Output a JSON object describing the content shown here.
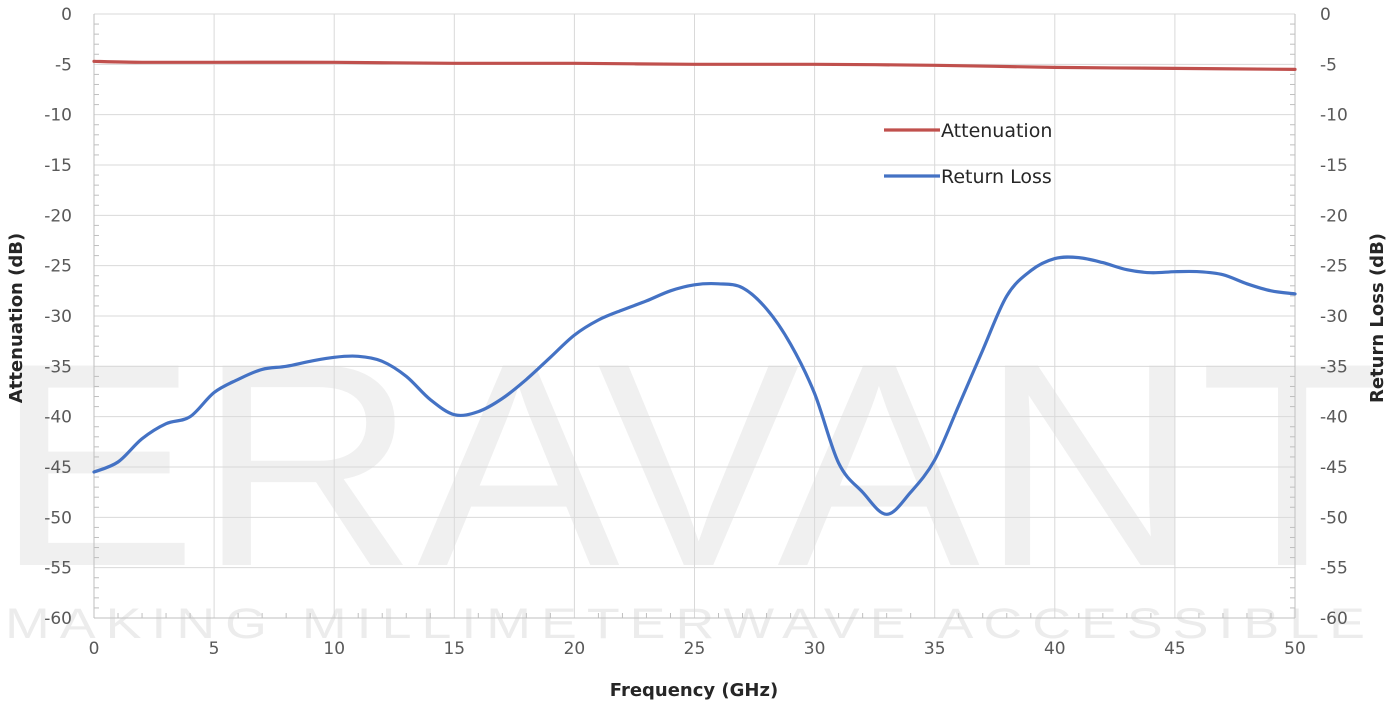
{
  "watermark": {
    "logo_text": "ERAVANT",
    "tagline": "MAKING MILLIMETERWAVE ACCESSIBLE"
  },
  "chart_data": {
    "type": "line",
    "xlabel": "Frequency (GHz)",
    "ylabel_left": "Attenuation (dB)",
    "ylabel_right": "Return Loss (dB)",
    "xlim": [
      0,
      50
    ],
    "ylim": [
      -60,
      0
    ],
    "x_ticks": [
      "0",
      "5",
      "10",
      "15",
      "20",
      "25",
      "30",
      "35",
      "40",
      "45",
      "50"
    ],
    "y_ticks": [
      "0",
      "-5",
      "-10",
      "-15",
      "-20",
      "-25",
      "-30",
      "-35",
      "-40",
      "-45",
      "-50",
      "-55",
      "-60"
    ],
    "grid": "horizontal major + vertical major",
    "legend_position": "upper-right, inside plot",
    "series": [
      {
        "name": "Attenuation",
        "axis": "left",
        "color": "#c0504d",
        "x": [
          0,
          2,
          5,
          10,
          15,
          20,
          25,
          30,
          35,
          40,
          45,
          50
        ],
        "y": [
          -4.7,
          -4.8,
          -4.8,
          -4.8,
          -4.9,
          -4.9,
          -5.0,
          -5.0,
          -5.1,
          -5.3,
          -5.4,
          -5.5
        ]
      },
      {
        "name": "Return Loss",
        "axis": "right",
        "color": "#4472c4",
        "x": [
          0,
          1,
          2,
          3,
          4,
          5,
          6,
          7,
          8,
          9,
          10,
          11,
          12,
          13,
          14,
          15,
          16,
          17,
          18,
          19,
          20,
          21,
          22,
          23,
          24,
          25,
          26,
          27,
          28,
          29,
          30,
          31,
          32,
          33,
          34,
          35,
          36,
          37,
          38,
          39,
          40,
          41,
          42,
          43,
          44,
          45,
          46,
          47,
          48,
          49,
          50
        ],
        "y": [
          -45.5,
          -44.5,
          -42.2,
          -40.7,
          -40.0,
          -37.6,
          -36.3,
          -35.3,
          -35.0,
          -34.5,
          -34.1,
          -34.0,
          -34.5,
          -36.0,
          -38.3,
          -39.8,
          -39.5,
          -38.2,
          -36.3,
          -34.1,
          -31.9,
          -30.4,
          -29.4,
          -28.5,
          -27.5,
          -26.9,
          -26.8,
          -27.2,
          -29.3,
          -32.8,
          -37.7,
          -44.6,
          -47.5,
          -49.7,
          -47.5,
          -44.3,
          -38.9,
          -33.4,
          -28.0,
          -25.5,
          -24.3,
          -24.2,
          -24.7,
          -25.4,
          -25.7,
          -25.6,
          -25.6,
          -25.9,
          -26.8,
          -27.5,
          -27.8
        ]
      }
    ]
  }
}
